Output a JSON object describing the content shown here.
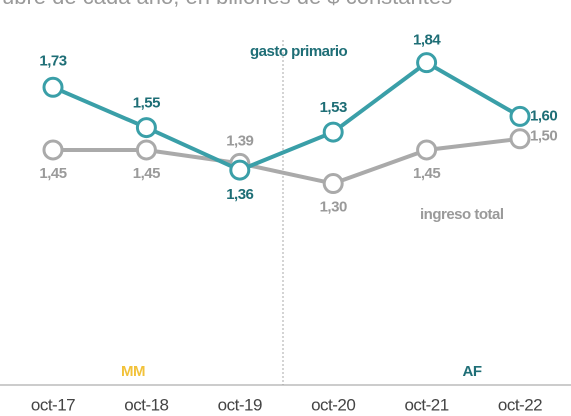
{
  "chart_data": {
    "type": "line",
    "subtitle": "ubre de cada año, en billones de $ constantes",
    "categories": [
      "oct-17",
      "oct-18",
      "oct-19",
      "oct-20",
      "oct-21",
      "oct-22"
    ],
    "series": [
      {
        "name": "gasto primario",
        "color": "#3a9fa8",
        "label_color": "#1e6e76",
        "values": [
          1.73,
          1.55,
          1.36,
          1.53,
          1.84,
          1.6
        ],
        "value_labels": [
          "1,73",
          "1,55",
          "1,36",
          "1,53",
          "1,84",
          "1,60"
        ]
      },
      {
        "name": "ingreso total",
        "color": "#aaaaaa",
        "label_color": "#9a9a9a",
        "values": [
          1.45,
          1.45,
          1.39,
          1.3,
          1.45,
          1.5
        ],
        "value_labels": [
          "1,45",
          "1,45",
          "1,39",
          "1,30",
          "1,45",
          "1,50"
        ]
      }
    ],
    "annotations": [
      {
        "text": "MM",
        "color": "#f2c23a"
      },
      {
        "text": "AF",
        "color": "#1e6e76"
      }
    ],
    "ylim": [
      0.4,
      2.12
    ]
  }
}
